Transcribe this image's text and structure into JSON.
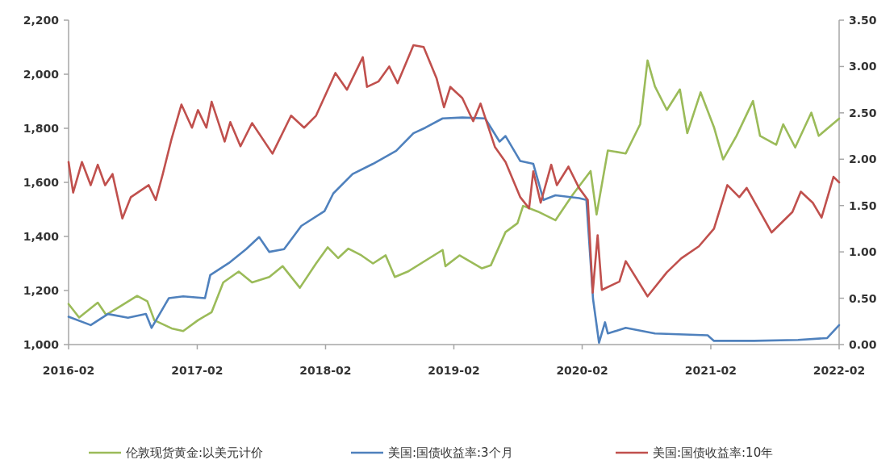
{
  "chart_data": {
    "type": "line",
    "xlim": [
      "2016-02",
      "2022-02"
    ],
    "xticks": [
      "2016-02",
      "2017-02",
      "2018-02",
      "2019-02",
      "2020-02",
      "2021-02",
      "2022-02"
    ],
    "ylim": [
      1000,
      2200
    ],
    "yticks": [
      {
        "value": 1000,
        "label": "1,000"
      },
      {
        "value": 1200,
        "label": "1,200"
      },
      {
        "value": 1400,
        "label": "1,400"
      },
      {
        "value": 1600,
        "label": "1,600"
      },
      {
        "value": 1800,
        "label": "1,800"
      },
      {
        "value": 2000,
        "label": "2,000"
      },
      {
        "value": 2200,
        "label": "2,200"
      }
    ],
    "y2lim": [
      0,
      3.5
    ],
    "y2ticks": [
      {
        "value": 0,
        "label": "0.00"
      },
      {
        "value": 0.5,
        "label": "0.50"
      },
      {
        "value": 1,
        "label": "1.00"
      },
      {
        "value": 1.5,
        "label": "1.50"
      },
      {
        "value": 2,
        "label": "2.00"
      },
      {
        "value": 2.5,
        "label": "2.50"
      },
      {
        "value": 3,
        "label": "3.00"
      },
      {
        "value": 3.5,
        "label": "3.50"
      }
    ],
    "legend": "bottom",
    "series": [
      {
        "name": "伦敦现货黄金:以美元计价",
        "color": "#9bbb59",
        "x": [
          "2016-02-01",
          "2016-03-02",
          "2016-04-24",
          "2016-05-18",
          "2016-06-25",
          "2016-08-14",
          "2016-09-12",
          "2016-10-02",
          "2016-11-20",
          "2016-12-23",
          "2017-02-03",
          "2017-03-14",
          "2017-04-16",
          "2017-05-30",
          "2017-07-07",
          "2017-08-25",
          "2017-10-02",
          "2017-11-20",
          "2018-01-05",
          "2018-02-07",
          "2018-03-09",
          "2018-04-07",
          "2018-05-14",
          "2018-06-16",
          "2018-07-22",
          "2018-08-17",
          "2018-09-23",
          "2018-12-31",
          "2019-01-08",
          "2019-02-17",
          "2019-04-22",
          "2019-05-17",
          "2019-06-28",
          "2019-08-01",
          "2019-08-17",
          "2019-09-28",
          "2019-11-17",
          "2020-01-06",
          "2020-02-25",
          "2020-03-13",
          "2020-04-14",
          "2020-06-04",
          "2020-07-15",
          "2020-08-05",
          "2020-08-26",
          "2020-09-29",
          "2020-11-05",
          "2020-11-26",
          "2021-01-03",
          "2021-02-10",
          "2021-03-08",
          "2021-04-15",
          "2021-06-01",
          "2021-06-21",
          "2021-08-06",
          "2021-08-26",
          "2021-09-29",
          "2021-11-14",
          "2021-12-05",
          "2022-02-01"
        ],
        "values": [
          1150,
          1100,
          1155,
          1110,
          1140,
          1180,
          1160,
          1090,
          1060,
          1050,
          1090,
          1120,
          1230,
          1270,
          1230,
          1250,
          1290,
          1210,
          1300,
          1360,
          1320,
          1355,
          1330,
          1300,
          1330,
          1250,
          1270,
          1350,
          1290,
          1330,
          1282,
          1293,
          1416,
          1449,
          1513,
          1492,
          1460,
          1556,
          1642,
          1481,
          1718,
          1707,
          1815,
          2051,
          1955,
          1868,
          1944,
          1782,
          1933,
          1804,
          1685,
          1772,
          1901,
          1772,
          1739,
          1815,
          1729,
          1858,
          1772,
          1836
        ]
      },
      {
        "name": "美国:国债收益率:3个月",
        "color": "#4f81bd",
        "axis": "y2",
        "x": [
          "2016-02-01",
          "2016-04-04",
          "2016-05-23",
          "2016-07-19",
          "2016-09-08",
          "2016-09-24",
          "2016-11-12",
          "2016-12-23",
          "2017-02-23",
          "2017-03-10",
          "2017-05-02",
          "2017-06-20",
          "2017-07-27",
          "2017-08-25",
          "2017-10-06",
          "2017-11-24",
          "2018-01-29",
          "2018-02-23",
          "2018-04-19",
          "2018-06-16",
          "2018-08-21",
          "2018-10-09",
          "2018-11-12",
          "2018-12-31",
          "2019-02-25",
          "2019-05-01",
          "2019-06-11",
          "2019-06-28",
          "2019-08-09",
          "2019-09-15",
          "2019-10-14",
          "2019-11-17",
          "2020-01-23",
          "2020-02-13",
          "2020-03-03",
          "2020-03-20",
          "2020-04-06",
          "2020-04-14",
          "2020-06-04",
          "2020-08-26",
          "2021-01-23",
          "2021-02-10",
          "2021-06-04",
          "2021-10-07",
          "2021-12-29",
          "2022-02-01"
        ],
        "values": [
          0.3,
          0.21,
          0.33,
          0.29,
          0.33,
          0.18,
          0.5,
          0.52,
          0.5,
          0.75,
          0.88,
          1.03,
          1.16,
          1.0,
          1.03,
          1.28,
          1.44,
          1.63,
          1.84,
          1.95,
          2.09,
          2.28,
          2.34,
          2.44,
          2.45,
          2.44,
          2.19,
          2.25,
          1.98,
          1.95,
          1.56,
          1.61,
          1.58,
          1.56,
          0.49,
          0.02,
          0.24,
          0.12,
          0.18,
          0.12,
          0.1,
          0.04,
          0.04,
          0.05,
          0.07,
          0.21
        ]
      },
      {
        "name": "美国:国债收益率:10年",
        "color": "#c0504d",
        "axis": "y2",
        "x": [
          "2016-02-01",
          "2016-02-14",
          "2016-03-10",
          "2016-04-04",
          "2016-04-24",
          "2016-05-15",
          "2016-06-05",
          "2016-07-03",
          "2016-07-27",
          "2016-09-16",
          "2016-10-06",
          "2016-10-26",
          "2016-11-20",
          "2016-12-18",
          "2017-01-17",
          "2017-02-03",
          "2017-02-27",
          "2017-03-14",
          "2017-04-20",
          "2017-05-06",
          "2017-06-04",
          "2017-07-07",
          "2017-09-03",
          "2017-10-26",
          "2017-12-02",
          "2018-01-05",
          "2018-03-01",
          "2018-04-03",
          "2018-05-18",
          "2018-05-30",
          "2018-07-02",
          "2018-08-01",
          "2018-08-25",
          "2018-10-09",
          "2018-11-07",
          "2018-12-14",
          "2019-01-04",
          "2019-01-22",
          "2019-02-25",
          "2019-03-28",
          "2019-04-18",
          "2019-05-29",
          "2019-06-28",
          "2019-08-09",
          "2019-09-03",
          "2019-09-15",
          "2019-10-06",
          "2019-11-05",
          "2019-11-21",
          "2019-12-24",
          "2020-01-23",
          "2020-02-17",
          "2020-03-02",
          "2020-03-16",
          "2020-03-28",
          "2020-05-17",
          "2020-06-04",
          "2020-08-05",
          "2020-09-29",
          "2020-11-09",
          "2020-12-29",
          "2021-02-10",
          "2021-03-20",
          "2021-04-23",
          "2021-05-14",
          "2021-07-24",
          "2021-09-21",
          "2021-10-15",
          "2021-11-18",
          "2021-12-13",
          "2022-01-16",
          "2022-02-01"
        ],
        "values": [
          1.97,
          1.64,
          1.97,
          1.72,
          1.94,
          1.72,
          1.84,
          1.36,
          1.59,
          1.72,
          1.56,
          1.84,
          2.22,
          2.59,
          2.34,
          2.53,
          2.34,
          2.62,
          2.19,
          2.4,
          2.14,
          2.39,
          2.06,
          2.47,
          2.34,
          2.47,
          2.93,
          2.75,
          3.1,
          2.78,
          2.84,
          3.0,
          2.82,
          3.23,
          3.21,
          2.87,
          2.56,
          2.78,
          2.66,
          2.41,
          2.6,
          2.13,
          1.97,
          1.59,
          1.47,
          1.87,
          1.53,
          1.94,
          1.72,
          1.92,
          1.69,
          1.56,
          0.56,
          1.18,
          0.59,
          0.68,
          0.9,
          0.52,
          0.78,
          0.93,
          1.06,
          1.25,
          1.72,
          1.59,
          1.69,
          1.21,
          1.43,
          1.65,
          1.53,
          1.37,
          1.81,
          1.75
        ]
      }
    ]
  }
}
